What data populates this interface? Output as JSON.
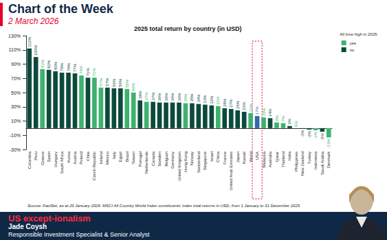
{
  "page": {
    "header_title": "Chart of the Week",
    "date": "2 March 2026",
    "source": "Source: FactSet, as at 20 January 2026. MSCI All Country World Index constituents' index total returns in USD, from 1 January to 31 December 2025.",
    "banner_title": "US except-ionalism",
    "author": "Jade Coysh",
    "role": "Responsible Investment Specialist & Senior Analyst"
  },
  "chart_data": {
    "type": "bar",
    "title": "2025 total return by country (in USD)",
    "legend_title": "All time high in 2025:",
    "categories": [
      "Colombia",
      "Peru",
      "Greece",
      "Spain",
      "Hungary",
      "South Africa",
      "Korea",
      "Austria",
      "Poland",
      "Chile",
      "Czech Republic",
      "Ireland",
      "Mexico",
      "Italy",
      "Egypt",
      "Brazil",
      "Taiwan",
      "Portugal",
      "Netherlands",
      "Canada",
      "Sweden",
      "Belgium",
      "Germany",
      "United Kingdom",
      "Hong Kong",
      "Norway",
      "Switzerland",
      "Singapore",
      "Israel",
      "China",
      "France",
      "United Arab Emirates",
      "Japan",
      "Kuwait",
      "World",
      "USA",
      "Malaysia",
      "Australia",
      "Qatar",
      "Thailand",
      "India",
      "Philippines",
      "New Zealand",
      "Turkey",
      "Indonesia",
      "Saudi Arabia",
      "Denmark"
    ],
    "series": [
      {
        "name": "yes",
        "color": "#3db26e",
        "colors": [
          null,
          null,
          "#3db26e",
          null,
          null,
          null,
          null,
          null,
          "#3db26e",
          null,
          "#3db26e",
          "#3db26e",
          null,
          null,
          null,
          "#3db26e",
          "#3db26e",
          null,
          "#3db26e",
          null,
          null,
          null,
          null,
          null,
          "#3db26e",
          null,
          null,
          null,
          null,
          "#3db26e",
          null,
          null,
          null,
          null,
          "#3db26e",
          "#3b63b0",
          "#3db26e",
          null,
          "#3db26e",
          "#3db26e",
          null,
          "#3db26e",
          null,
          null,
          "#3db26e",
          null,
          "#3db26e"
        ],
        "values": [
          null,
          null,
          83,
          null,
          null,
          null,
          null,
          null,
          74,
          null,
          71,
          57,
          null,
          null,
          null,
          55,
          50,
          null,
          37,
          null,
          null,
          null,
          null,
          null,
          35,
          null,
          null,
          null,
          null,
          31,
          null,
          null,
          null,
          null,
          21,
          17,
          15,
          null,
          8,
          7,
          null,
          0,
          null,
          null,
          -3,
          null,
          -13
        ],
        "value_labels": [
          null,
          null,
          "83%",
          null,
          null,
          null,
          null,
          null,
          "74%",
          null,
          "71%",
          "57%",
          null,
          null,
          null,
          "55%",
          "50%",
          null,
          "37%",
          null,
          null,
          null,
          null,
          null,
          "35%",
          null,
          null,
          null,
          null,
          "31%",
          null,
          null,
          null,
          null,
          "21%",
          "17%",
          "15%",
          null,
          "8%",
          "7%",
          null,
          "0%",
          null,
          null,
          "-3%",
          null,
          "-13%"
        ]
      },
      {
        "name": "no",
        "color": "#0c4a3b",
        "values": [
          112,
          100,
          null,
          82,
          80,
          78,
          78,
          77,
          null,
          71,
          null,
          null,
          57,
          56,
          56,
          null,
          null,
          39,
          null,
          37,
          36,
          36,
          36,
          36,
          null,
          35,
          34,
          33,
          32,
          null,
          28,
          27,
          25,
          23,
          null,
          null,
          null,
          14,
          null,
          null,
          3,
          null,
          -1,
          -2,
          null,
          -5,
          null
        ],
        "value_labels": [
          "112%",
          "100%",
          null,
          "82%",
          "80%",
          "78%",
          "78%",
          "77%",
          null,
          "71%",
          null,
          null,
          "57%",
          "56%",
          "56%",
          null,
          null,
          "39%",
          null,
          "37%",
          "36%",
          "36%",
          "36%",
          "36%",
          null,
          "35%",
          "34%",
          "33%",
          "32%",
          null,
          "28%",
          "27%",
          "25%",
          "23%",
          null,
          null,
          null,
          "14%",
          null,
          null,
          "3%",
          null,
          "-1%",
          "-2%",
          null,
          "-5%",
          null
        ]
      }
    ],
    "ylim": [
      -30,
      130
    ],
    "yticks": [
      {
        "value": -30,
        "label": "-30%"
      },
      {
        "value": -10,
        "label": "-10%"
      },
      {
        "value": 10,
        "label": "10%"
      },
      {
        "value": 30,
        "label": "30%"
      },
      {
        "value": 50,
        "label": "50%"
      },
      {
        "value": 70,
        "label": "70%"
      },
      {
        "value": 90,
        "label": "90%"
      },
      {
        "value": 110,
        "label": "110%"
      },
      {
        "value": 130,
        "label": "130%"
      }
    ],
    "grid": false,
    "legend": "upper right",
    "stacked": true,
    "data_labels": true
  }
}
